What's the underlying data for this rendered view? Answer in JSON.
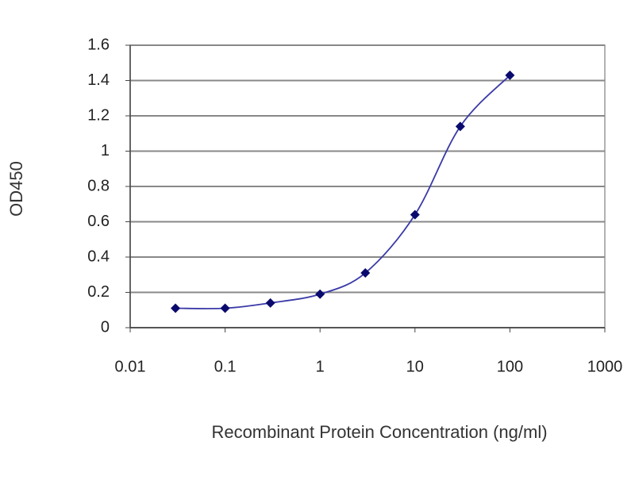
{
  "chart_data": {
    "type": "line",
    "x_label": "Recombinant Protein Concentration (ng/ml)",
    "y_label": "OD450",
    "x": [
      0.03,
      0.1,
      0.3,
      1,
      3,
      10,
      30,
      100
    ],
    "series": [
      {
        "color": "#3a3aa8",
        "values": [
          0.11,
          0.11,
          0.14,
          0.19,
          0.31,
          0.64,
          1.14,
          1.43
        ]
      }
    ],
    "marker_color": "#0a0a6e",
    "xscale": "log",
    "xlim": [
      0.01,
      1000
    ],
    "xticks": [
      0.01,
      0.1,
      1,
      10,
      100,
      1000
    ],
    "ylim": [
      0,
      1.6
    ],
    "yticks": [
      0,
      0.2,
      0.4,
      0.6,
      0.8,
      1,
      1.2,
      1.4,
      1.6
    ],
    "grid": true
  }
}
